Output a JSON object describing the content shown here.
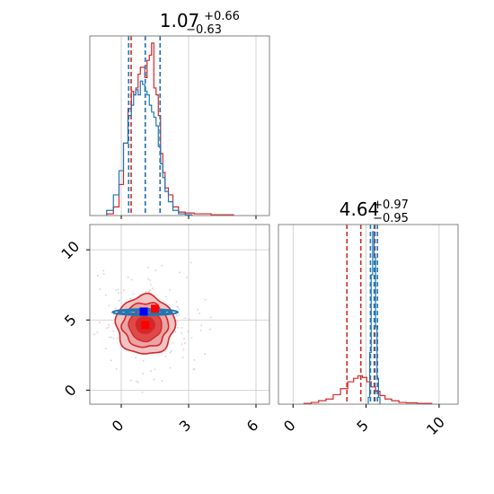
{
  "colors": {
    "red": "#d62728",
    "red_fill": "#e8a0a0",
    "red_fill_dark": "#e35050",
    "blue": "#1f77b4",
    "square_red": "#ff0000",
    "square_blue": "#0000ff",
    "grid": "#c8c8c8",
    "frame": "#808080"
  },
  "chart_data": {
    "type": "corner",
    "panels": [
      {
        "id": "marg1",
        "type": "histogram",
        "title": {
          "value": "1.07",
          "plus": "+0.66",
          "minus": "−0.63"
        },
        "xlim": [
          -1.4,
          6.6
        ],
        "x_ticks": [
          0,
          3,
          6
        ],
        "series": [
          {
            "name": "",
            "color": "#d62728",
            "quantiles": [
              0.44,
              1.07,
              1.73
            ],
            "centers": [
              -0.5,
              -0.2,
              0.0,
              0.2,
              0.4,
              0.5,
              0.6,
              0.7,
              0.8,
              0.9,
              1.0,
              1.1,
              1.2,
              1.3,
              1.4,
              1.5,
              1.6,
              1.7,
              1.8,
              1.9,
              2.0,
              2.2,
              2.4,
              2.7,
              3.0,
              3.5,
              4.5
            ],
            "heights": [
              0.01,
              0.05,
              0.18,
              0.42,
              0.62,
              0.72,
              0.7,
              0.74,
              0.82,
              0.86,
              0.86,
              0.8,
              0.9,
              0.93,
              1.0,
              0.74,
              0.7,
              0.58,
              0.36,
              0.25,
              0.16,
              0.12,
              0.05,
              0.02,
              0.015,
              0.01,
              0.005
            ]
          },
          {
            "name": "",
            "color": "#1f77b4",
            "quantiles": [
              0.33,
              1.07,
              1.73
            ],
            "centers": [
              -0.5,
              -0.2,
              0.0,
              0.2,
              0.4,
              0.5,
              0.6,
              0.7,
              0.8,
              0.9,
              1.0,
              1.1,
              1.2,
              1.3,
              1.4,
              1.5,
              1.6,
              1.7,
              1.8,
              1.9,
              2.0,
              2.2,
              2.4,
              2.7,
              3.0
            ],
            "heights": [
              0.03,
              0.12,
              0.26,
              0.42,
              0.58,
              0.64,
              0.7,
              0.73,
              0.7,
              0.78,
              0.76,
              0.72,
              0.7,
              0.64,
              0.6,
              0.57,
              0.52,
              0.4,
              0.3,
              0.22,
              0.14,
              0.08,
              0.03,
              0.01,
              0.005
            ]
          }
        ]
      },
      {
        "id": "marg2",
        "type": "histogram",
        "title": {
          "value": "4.64",
          "plus": "+0.97",
          "minus": "−0.95"
        },
        "xlim": [
          -1.0,
          11.3
        ],
        "x_ticks": [
          0,
          5,
          10
        ],
        "series": [
          {
            "name": "",
            "color": "#d62728",
            "quantiles": [
              3.69,
              4.64,
              5.61
            ],
            "centers": [
              1.0,
              1.5,
              2.0,
              2.5,
              3.0,
              3.5,
              4.0,
              4.3,
              4.6,
              4.9,
              5.2,
              5.5,
              5.8,
              6.1,
              6.5,
              7.0,
              7.5,
              8.0,
              9.0
            ],
            "heights": [
              0.005,
              0.01,
              0.02,
              0.03,
              0.055,
              0.09,
              0.13,
              0.15,
              0.165,
              0.155,
              0.13,
              0.1,
              0.075,
              0.05,
              0.03,
              0.02,
              0.01,
              0.008,
              0.005
            ]
          },
          {
            "name": "",
            "color": "#1f77b4",
            "quantiles": [
              5.3,
              5.56,
              5.78
            ],
            "centers": [
              5.2,
              5.3,
              5.4,
              5.5,
              5.6,
              5.7,
              5.8,
              5.9
            ],
            "heights": [
              0.04,
              0.3,
              0.75,
              1.0,
              0.85,
              0.45,
              0.15,
              0.04
            ]
          }
        ]
      },
      {
        "id": "joint",
        "type": "contour",
        "xlim": [
          -1.4,
          6.6
        ],
        "ylim": [
          -1.0,
          11.8
        ],
        "x_ticks": [
          0,
          3,
          6
        ],
        "y_ticks": [
          0,
          5,
          10
        ],
        "red_center": [
          1.07,
          4.64
        ],
        "red_square": [
          1.5,
          5.8
        ],
        "blue_square": [
          1.0,
          5.6
        ],
        "blue_center": [
          1.07,
          5.56
        ]
      }
    ]
  },
  "icons": {
    "marker_red": "square-marker",
    "marker_blue": "square-marker"
  }
}
